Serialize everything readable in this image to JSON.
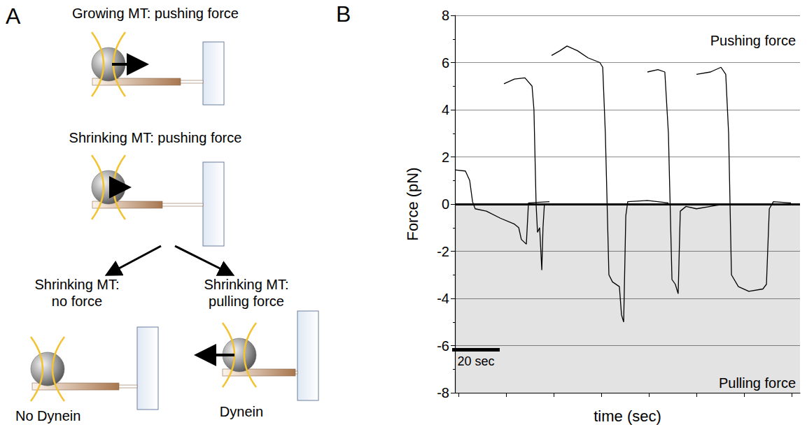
{
  "panel_a": {
    "label": "A",
    "steps": [
      {
        "title": "Growing MT: pushing force"
      },
      {
        "title": "Shrinking MT: pushing force"
      }
    ],
    "outcomes": [
      {
        "title_lines": [
          "Shrinking MT:",
          "no force"
        ],
        "caption": "No Dynein"
      },
      {
        "title_lines": [
          "Shrinking MT:",
          "pulling force"
        ],
        "caption": "Dynein"
      }
    ]
  },
  "chart_data": {
    "type": "line",
    "panel": "B",
    "y_label": "Force (pN)",
    "x_label": "time (sec)",
    "xlim": [
      0,
      145
    ],
    "xticks": [
      1.5,
      21.5,
      41.5,
      61.5,
      81.5,
      101.5,
      121.5,
      141.5
    ],
    "ylim": [
      -8,
      8
    ],
    "yticks": [
      -8,
      -6,
      -4,
      -2,
      0,
      2,
      4,
      6,
      8
    ],
    "tick_labels": "y",
    "grid": true,
    "zero_line": 0,
    "annotations": [
      "Pushing force",
      "Pulling force"
    ],
    "scale_bar": {
      "length": 20,
      "label": "20 sec"
    },
    "series": [
      {
        "color": "#000000",
        "x": [
          0,
          4.4,
          6.2,
          7.4,
          8.5,
          13.2,
          19.1,
          25,
          26.8,
          27.9,
          30,
          30.9,
          39.7
        ],
        "values": [
          1.45,
          1.4,
          1.0,
          0.1,
          -0.2,
          -0.3,
          -0.6,
          -0.85,
          -1.0,
          -1.5,
          -1.7,
          0.05,
          0.1
        ]
      },
      {
        "color": "#000000",
        "x": [
          20.6,
          25,
          29.4,
          32.4,
          33.2,
          34.1,
          34.7,
          35.6,
          36.5,
          37,
          37.6
        ],
        "values": [
          5.1,
          5.3,
          5.35,
          5.0,
          4.0,
          0,
          -1.2,
          -1.0,
          -2.8,
          -1.0,
          0
        ]
      },
      {
        "color": "#000000",
        "x": [
          40.6,
          44.1,
          47.1,
          51.5,
          55.9,
          60.9,
          62.1,
          63.2,
          64.7,
          66.2,
          69.1,
          70,
          70.9,
          71.8,
          72.6,
          80.9,
          85.3,
          89.7
        ],
        "values": [
          6.3,
          6.5,
          6.7,
          6.5,
          6.2,
          6.0,
          5.8,
          3.0,
          -3.0,
          -3.3,
          -3.5,
          -4.7,
          -5.0,
          -0.5,
          0.1,
          0.15,
          0.1,
          0.05
        ]
      },
      {
        "color": "#000000",
        "x": [
          80.9,
          85.3,
          88.2,
          89.7,
          91.2,
          92.6,
          93.8,
          94.7,
          97.1,
          101.5,
          113.2
        ],
        "values": [
          5.6,
          5.7,
          5.6,
          3,
          -3.2,
          -3.4,
          -3.8,
          -0.3,
          -0.1,
          -0.2,
          0
        ]
      },
      {
        "color": "#000000",
        "x": [
          101.5,
          107.4,
          111.8,
          113.8,
          115,
          116.2,
          119.1,
          123.5,
          129.4,
          130.9,
          132.1,
          133.8,
          141.2
        ],
        "values": [
          5.5,
          5.6,
          5.8,
          5.5,
          3,
          -3.0,
          -3.5,
          -3.7,
          -3.6,
          -3.4,
          -0.2,
          0.1,
          0.05
        ]
      }
    ]
  }
}
